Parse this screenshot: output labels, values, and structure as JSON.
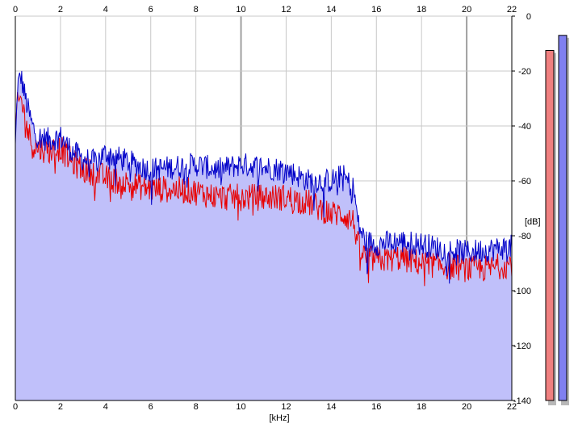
{
  "chart_data": {
    "type": "area",
    "xlabel": "[kHz]",
    "ylabel": "[dB]",
    "xlim": [
      0,
      22
    ],
    "ylim": [
      -140,
      0
    ],
    "x_ticks": [
      0,
      2,
      4,
      6,
      8,
      10,
      12,
      14,
      16,
      18,
      20,
      22
    ],
    "y_ticks": [
      0,
      -20,
      -40,
      -60,
      -80,
      -100,
      -120,
      -140
    ],
    "y_tick_labels": [
      "0",
      "-20",
      "-40",
      "-60",
      "-80",
      "-100",
      "-120",
      "-140"
    ],
    "grid": true,
    "colors": {
      "background": "#ffffff",
      "plot_background": "#ffffff",
      "fill": "#c0c0fa",
      "grid": "#c8c8c8",
      "major_grid": "#a0a0a0",
      "channel_left": "#e80000",
      "channel_right": "#0000c8"
    },
    "series": [
      {
        "color": "#0000c8",
        "x": [
          0,
          0.1,
          0.25,
          0.5,
          0.75,
          1.0,
          1.5,
          2.0,
          2.5,
          3.0,
          3.5,
          4.0,
          5.0,
          6.0,
          7.0,
          8.0,
          9.0,
          10.0,
          11.0,
          12.0,
          13.0,
          14.0,
          14.5,
          15.0,
          15.2,
          15.5,
          16.0,
          17.0,
          18.0,
          19.0,
          20.0,
          21.0,
          22.0
        ],
        "values": [
          -48,
          -25,
          -22,
          -32,
          -40,
          -44,
          -45,
          -44,
          -49,
          -52,
          -53,
          -50,
          -53,
          -56,
          -55,
          -54,
          -56,
          -54,
          -55,
          -56,
          -60,
          -60,
          -58,
          -63,
          -76,
          -82,
          -83,
          -82,
          -83,
          -85,
          -86,
          -85,
          -84
        ]
      },
      {
        "color": "#e80000",
        "x": [
          0,
          0.1,
          0.25,
          0.5,
          0.75,
          1.0,
          1.5,
          2.0,
          2.5,
          3.0,
          3.5,
          4.0,
          5.0,
          6.0,
          7.0,
          8.0,
          9.0,
          10.0,
          11.0,
          12.0,
          13.0,
          14.0,
          14.5,
          15.0,
          15.2,
          15.5,
          16.0,
          17.0,
          18.0,
          19.0,
          20.0,
          21.0,
          22.0
        ],
        "values": [
          -43,
          -32,
          -30,
          -40,
          -47,
          -48,
          -49,
          -48,
          -53,
          -56,
          -57,
          -59,
          -61,
          -63,
          -63,
          -64,
          -66,
          -66,
          -66,
          -66,
          -68,
          -72,
          -72,
          -75,
          -84,
          -88,
          -89,
          -88,
          -90,
          -91,
          -92,
          -92,
          -90
        ]
      }
    ],
    "level_meters": [
      {
        "channel": "left",
        "color": "#f08080",
        "level_db": -12.5
      },
      {
        "channel": "right",
        "color": "#8080f0",
        "level_db": -7.0
      }
    ]
  }
}
